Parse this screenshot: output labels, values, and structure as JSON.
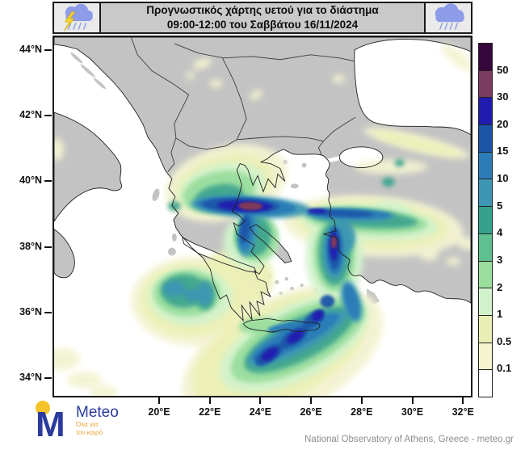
{
  "header": {
    "title_line1": "Προγνωστικός χάρτης  υετού για το διάστημα",
    "title_line2": "09:00-12:00 του Σαββάτου 16/11/2024",
    "left_icon": "storm-cloud-lightning-rain",
    "right_icon": "rain-cloud"
  },
  "map": {
    "lat_labels": [
      "44°N",
      "42°N",
      "40°N",
      "38°N",
      "36°N",
      "34°N"
    ],
    "lon_labels": [
      "20°E",
      "22°E",
      "24°E",
      "26°E",
      "28°E",
      "30°E",
      "32°E"
    ]
  },
  "colorbar": {
    "labels": [
      "50",
      "30",
      "20",
      "15",
      "10",
      "5",
      "4",
      "3",
      "2",
      "1",
      "0.5",
      "0.1"
    ],
    "colors": [
      "#35073c",
      "#7b3c60",
      "#211cb0",
      "#1a55a8",
      "#2b7cb8",
      "#3c96b4",
      "#35a28c",
      "#5ec08e",
      "#9ade9e",
      "#d2f2cc",
      "#e9efb4",
      "#f4f4d0",
      "#ffffff"
    ]
  },
  "footer": {
    "logo_text": "Meteo",
    "logo_tagline_line1": "Όλα για",
    "logo_tagline_line2": "τον καιρό",
    "attribution": "National Observatory of Athens, Greece - meteo.gr"
  },
  "chart_data": {
    "type": "heatmap",
    "title": "Προγνωστικός χάρτης υετού για το διάστημα 09:00-12:00 του Σαββάτου 16/11/2024",
    "x_axis_ticks": [
      "20°E",
      "22°E",
      "24°E",
      "26°E",
      "28°E",
      "30°E",
      "32°E"
    ],
    "y_axis_ticks": [
      "44°N",
      "42°N",
      "40°N",
      "38°N",
      "36°N",
      "34°N"
    ],
    "colorbar_levels": [
      0.1,
      0.5,
      1,
      2,
      3,
      4,
      5,
      10,
      15,
      20,
      30,
      50
    ],
    "colorbar_colors": [
      "#ffffff",
      "#f4f4d0",
      "#e9efb4",
      "#d2f2cc",
      "#9ade9e",
      "#5ec08e",
      "#35a28c",
      "#3c96b4",
      "#2b7cb8",
      "#1a55a8",
      "#211cb0",
      "#7b3c60",
      "#35073c"
    ],
    "hotspots": [
      {
        "area": "central-northern Greece band (Thessaly/Sporades, ~23.3E 39.3N)",
        "value_range": "30-50"
      },
      {
        "area": "eastern Aegean near Izmir (~27.1E 38.5N)",
        "value_range": "30-50"
      },
      {
        "area": "diagonal band SE of Crete toward Rhodes (~25-27E 34-36N)",
        "value_range": "15-30"
      },
      {
        "area": "Ionian Sea patch (~19.5E 37.5N)",
        "value_range": "4-10"
      },
      {
        "area": "NW Turkey / Black Sea coast streaks",
        "value_range": "0.1-3"
      }
    ]
  }
}
